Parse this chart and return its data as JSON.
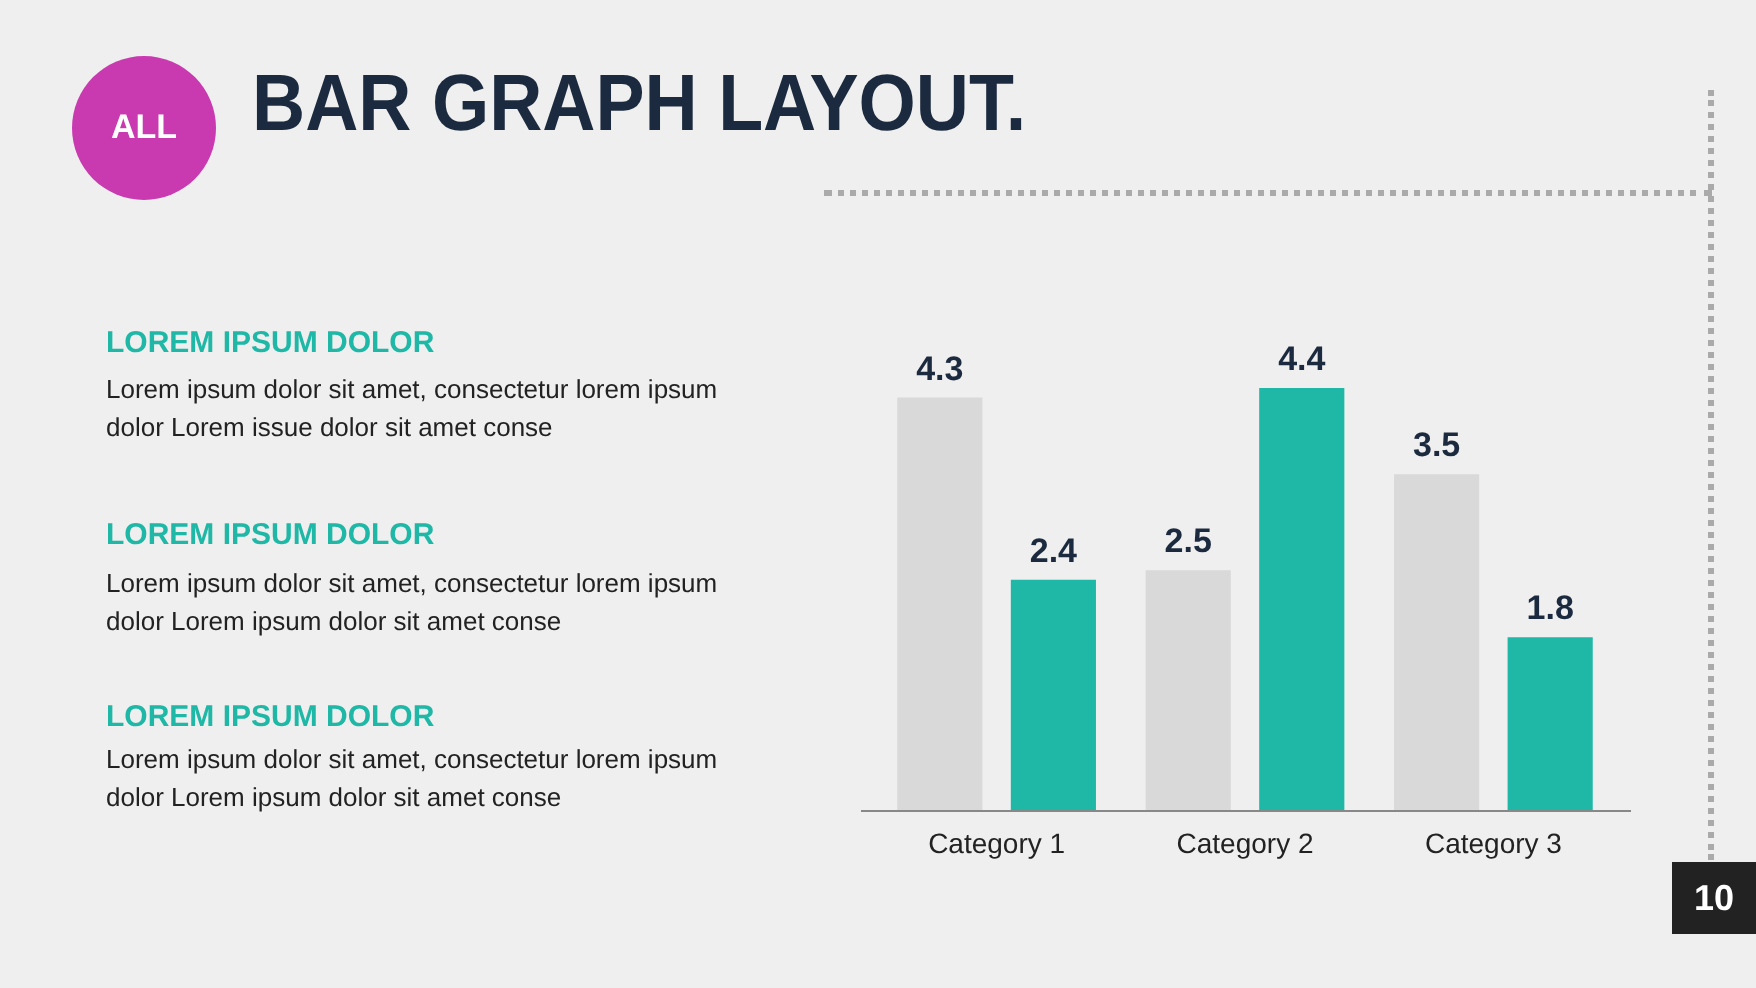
{
  "chart_data": {
    "type": "bar",
    "title": "BAR GRAPH LAYOUT.",
    "categories": [
      "Category 1",
      "Category 2",
      "Category 3"
    ],
    "series": [
      {
        "color": "#d9d9d9",
        "values": [
          4.3,
          2.5,
          3.5
        ]
      },
      {
        "color": "#1fb8a6",
        "values": [
          2.4,
          4.4,
          1.8
        ]
      }
    ],
    "data_labels": true,
    "annotations": [
      "ALL",
      "LOREM IPSUM DOLOR",
      "Lorem ipsum dolor sit amet, consectetur lorem ipsum dolor  Lorem issue dolor sit amet conse",
      "LOREM IPSUM DOLOR",
      "Lorem ipsum dolor sit amet, consectetur lorem ipsum dolor  Lorem ipsum dolor sit amet conse",
      "LOREM IPSUM DOLOR",
      "Lorem ipsum dolor sit amet, consectetur lorem ipsum dolor  Lorem ipsum dolor sit amet conse",
      "10"
    ]
  }
}
